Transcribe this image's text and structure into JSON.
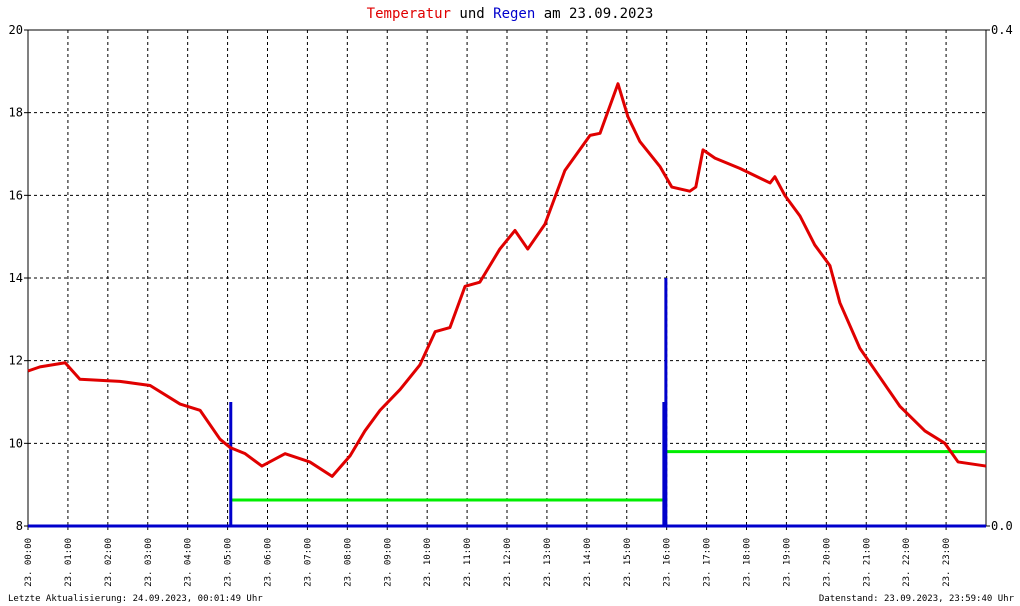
{
  "chart_data": {
    "type": "line",
    "title_joiner": "und",
    "title_suffix": "am 23.09.2023",
    "xlim": [
      0,
      24
    ],
    "xticks": [
      {
        "value": 0,
        "label": "23. 00:00"
      },
      {
        "value": 1,
        "label": "23. 01:00"
      },
      {
        "value": 2,
        "label": "23. 02:00"
      },
      {
        "value": 3,
        "label": "23. 03:00"
      },
      {
        "value": 4,
        "label": "23. 04:00"
      },
      {
        "value": 5,
        "label": "23. 05:00"
      },
      {
        "value": 6,
        "label": "23. 06:00"
      },
      {
        "value": 7,
        "label": "23. 07:00"
      },
      {
        "value": 8,
        "label": "23. 08:00"
      },
      {
        "value": 9,
        "label": "23. 09:00"
      },
      {
        "value": 10,
        "label": "23. 10:00"
      },
      {
        "value": 11,
        "label": "23. 11:00"
      },
      {
        "value": 12,
        "label": "23. 12:00"
      },
      {
        "value": 13,
        "label": "23. 13:00"
      },
      {
        "value": 14,
        "label": "23. 14:00"
      },
      {
        "value": 15,
        "label": "23. 15:00"
      },
      {
        "value": 16,
        "label": "23. 16:00"
      },
      {
        "value": 17,
        "label": "23. 17:00"
      },
      {
        "value": 18,
        "label": "23. 18:00"
      },
      {
        "value": 19,
        "label": "23. 19:00"
      },
      {
        "value": 20,
        "label": "23. 20:00"
      },
      {
        "value": 21,
        "label": "23. 21:00"
      },
      {
        "value": 22,
        "label": "23. 22:00"
      },
      {
        "value": 23,
        "label": "23. 23:00"
      }
    ],
    "ylim": [
      8,
      20
    ],
    "yticks": [
      8,
      10,
      12,
      14,
      16,
      18,
      20
    ],
    "y2lim": [
      0,
      0.4
    ],
    "y2ticks": [
      {
        "value": 0,
        "label": "0.0"
      },
      {
        "value": 0.4,
        "label": "0.4"
      }
    ],
    "grid": true,
    "series": [
      {
        "name": "Temperatur",
        "color": "#e00000",
        "kind": "line",
        "x": [
          0,
          0.3,
          0.93,
          1.3,
          2.3,
          3.06,
          3.81,
          4.31,
          4.81,
          5.06,
          5.44,
          5.86,
          6.44,
          7.06,
          7.62,
          8.07,
          8.44,
          8.82,
          9.32,
          9.82,
          10.2,
          10.57,
          10.95,
          11.32,
          11.82,
          12.2,
          12.52,
          12.95,
          13.45,
          14.08,
          14.33,
          14.78,
          15.03,
          15.33,
          15.83,
          16.13,
          16.58,
          16.73,
          16.91,
          17.21,
          17.84,
          18.59,
          18.71,
          18.96,
          19.34,
          19.71,
          20.09,
          20.34,
          20.84,
          21.34,
          21.84,
          22.47,
          22.97,
          23.3,
          24
        ],
        "values": [
          11.75,
          11.85,
          11.95,
          11.55,
          11.5,
          11.4,
          10.95,
          10.8,
          10.1,
          9.9,
          9.75,
          9.45,
          9.75,
          9.55,
          9.2,
          9.7,
          10.3,
          10.8,
          11.3,
          11.9,
          12.7,
          12.8,
          13.8,
          13.9,
          14.7,
          15.15,
          14.7,
          15.3,
          16.6,
          17.45,
          17.5,
          18.7,
          17.9,
          17.3,
          16.7,
          16.2,
          16.1,
          16.2,
          17.1,
          16.9,
          16.65,
          16.3,
          16.45,
          16.0,
          15.5,
          14.8,
          14.3,
          13.4,
          12.3,
          11.6,
          10.9,
          10.3,
          10.0,
          9.55,
          9.45
        ]
      },
      {
        "name": "Regen",
        "color": "#0000cc",
        "kind": "bar",
        "axis": "y2",
        "x": [
          5.08,
          15.93,
          15.98
        ],
        "values": [
          0.1,
          0.1,
          0.2
        ]
      },
      {
        "color": "#00ee00",
        "kind": "line",
        "axis": "y2",
        "x": [
          5.08,
          15.95,
          15.95,
          24
        ],
        "values": [
          0.021,
          0.021,
          0.06,
          0.06
        ]
      }
    ],
    "footer_left": "Letzte Aktualisierung: 24.09.2023, 00:01:49 Uhr",
    "footer_right": "Datenstand: 23.09.2023, 23:59:40 Uhr"
  }
}
